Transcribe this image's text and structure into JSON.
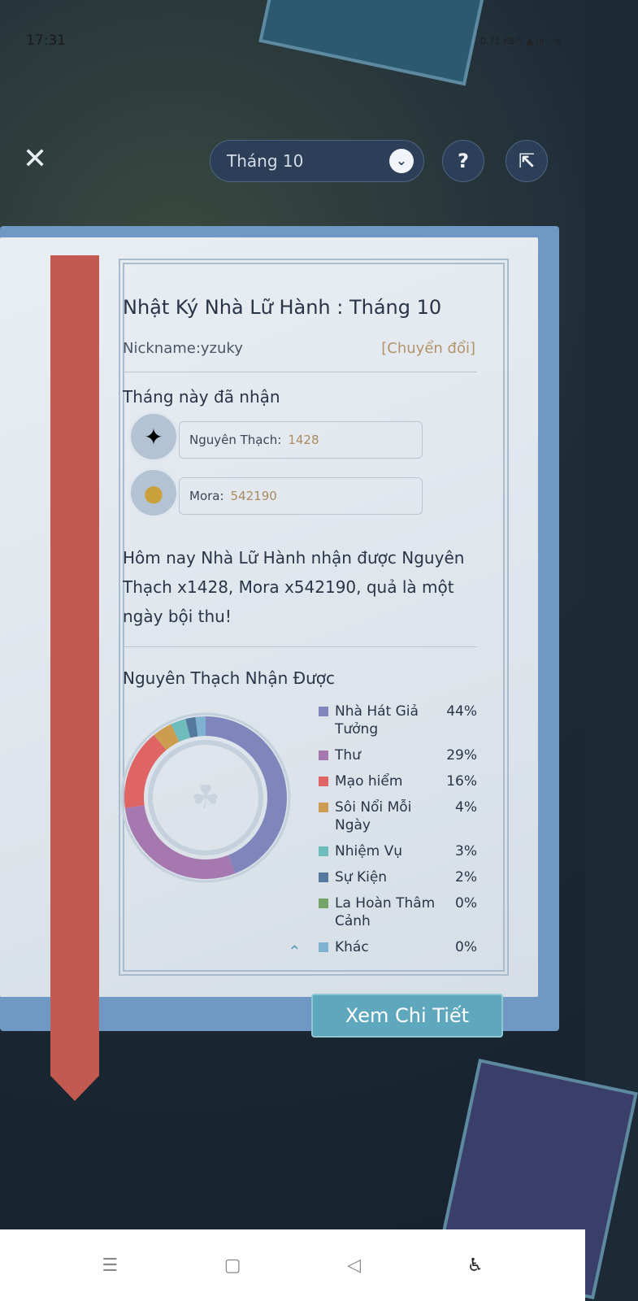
{
  "status": {
    "time": "17:31",
    "net_speed": "0.71 KB/S",
    "battery": "8"
  },
  "header": {
    "month_select": "Tháng 10",
    "help": "?",
    "share_icon": "share-icon"
  },
  "diary": {
    "title": "Nhật Ký Nhà Lữ Hành : Tháng 10",
    "nickname": "Nickname:yzuky",
    "switch": "[Chuyển đổi]",
    "received_heading": "Tháng này đã nhận",
    "resources": [
      {
        "label": "Nguyên Thạch:",
        "value": "1428"
      },
      {
        "label": "Mora:",
        "value": "542190"
      }
    ],
    "summary": "Hôm nay Nhà Lữ Hành nhận được Nguyên Thạch x1428, Mora x542190, quả là một ngày bội thu!",
    "chart_heading": "Nguyên Thạch Nhận Được"
  },
  "chart_data": {
    "type": "pie",
    "donut": true,
    "categories": [
      "Nhà Hát Giả Tưởng",
      "Thư",
      "Mạo hiểm",
      "Sôi Nổi Mỗi Ngày",
      "Nhiệm Vụ",
      "Sự Kiện",
      "La Hoàn Thâm Cảnh",
      "Khác"
    ],
    "values": [
      44,
      29,
      16,
      4,
      3,
      2,
      0,
      0
    ],
    "labels": [
      "44%",
      "29%",
      "16%",
      "4%",
      "3%",
      "2%",
      "0%",
      "0%"
    ],
    "colors": [
      "#7f86bb",
      "#a678b0",
      "#df6464",
      "#cc9c50",
      "#6fbcbc",
      "#54789e",
      "#74a468",
      "#7fb2d0"
    ],
    "legend_position": "right"
  },
  "button": {
    "details": "Xem Chi Tiết"
  }
}
